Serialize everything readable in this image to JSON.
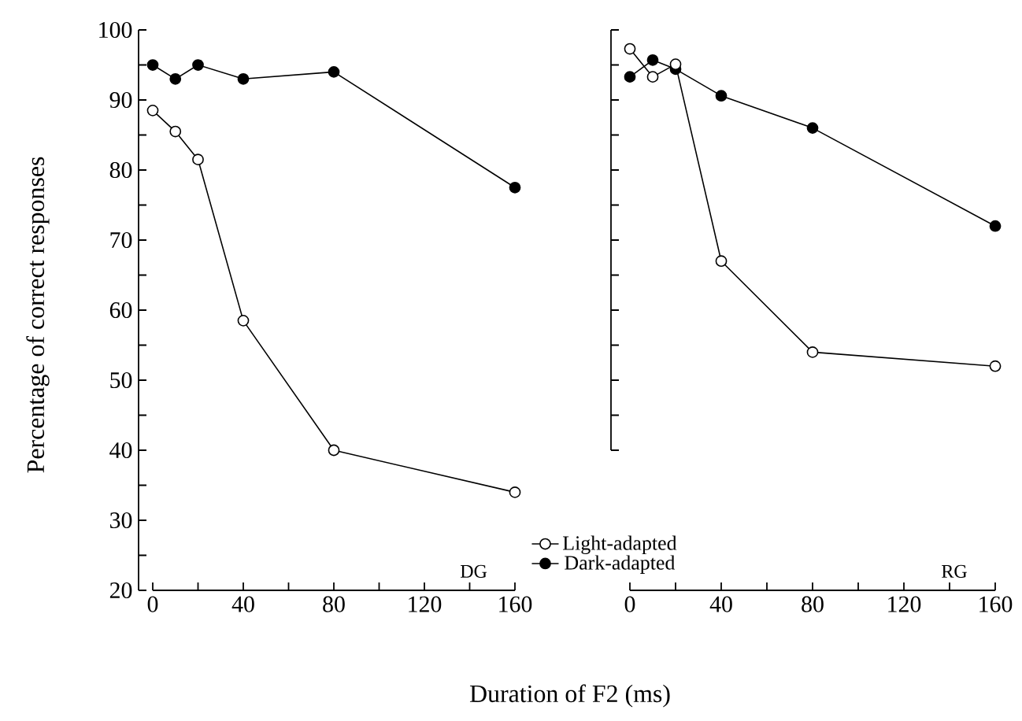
{
  "chart_data": [
    {
      "type": "line",
      "xlabel": "Duration of F2 (ms)",
      "ylabel": "Percentage of correct responses",
      "annotations": [
        "DG"
      ],
      "x": [
        0,
        10,
        20,
        40,
        80,
        160
      ],
      "series": [
        {
          "name": "Light-adapted",
          "color": "#ffffff",
          "values": [
            88.5,
            85.5,
            81.5,
            58.5,
            40,
            34
          ]
        },
        {
          "name": "Dark-adapted",
          "color": "#000000",
          "values": [
            95,
            93,
            95,
            93,
            94,
            77.5
          ]
        }
      ],
      "xlim": [
        0,
        160
      ],
      "ylim": [
        20,
        100
      ],
      "xticks": [
        0,
        {
          "value": 20,
          "label": null
        },
        40,
        {
          "value": 60,
          "label": null
        },
        80,
        {
          "value": 100,
          "label": null
        },
        120,
        {
          "value": 140,
          "label": null
        },
        160
      ],
      "yticks": [
        20,
        {
          "value": 25,
          "label": null
        },
        30,
        {
          "value": 35,
          "label": null
        },
        40,
        {
          "value": 45,
          "label": null
        },
        50,
        {
          "value": 55,
          "label": null
        },
        60,
        {
          "value": 65,
          "label": null
        },
        70,
        {
          "value": 75,
          "label": null
        },
        80,
        {
          "value": 85,
          "label": null
        },
        90,
        {
          "value": 95,
          "label": null
        },
        100
      ],
      "marker": "circle",
      "legend": "bottom right",
      "grid": false
    },
    {
      "type": "line",
      "annotations": [
        "RG"
      ],
      "x": [
        0,
        10,
        20,
        40,
        80,
        160
      ],
      "series": [
        {
          "color": "#ffffff",
          "values": [
            97.3,
            93.3,
            95.1,
            67,
            54,
            52
          ]
        },
        {
          "color": "#000000",
          "values": [
            93.3,
            95.7,
            94.4,
            90.6,
            86,
            72
          ]
        }
      ],
      "xlim": [
        0,
        160
      ],
      "ylim": [
        20,
        100
      ],
      "xticks": [
        0,
        {
          "value": 20,
          "label": null
        },
        40,
        {
          "value": 60,
          "label": null
        },
        80,
        {
          "value": 100,
          "label": null
        },
        120,
        {
          "value": 140,
          "label": null
        },
        160
      ],
      "yticks": [
        {
          "value": 40,
          "label": null
        },
        {
          "value": 45,
          "label": null
        },
        {
          "value": 50,
          "label": null
        },
        {
          "value": 55,
          "label": null
        },
        {
          "value": 60,
          "label": null
        },
        {
          "value": 65,
          "label": null
        },
        {
          "value": 70,
          "label": null
        },
        {
          "value": 75,
          "label": null
        },
        {
          "value": 80,
          "label": null
        },
        {
          "value": 85,
          "label": null
        },
        {
          "value": 90,
          "label": null
        },
        {
          "value": 95,
          "label": null
        },
        {
          "value": 100,
          "label": null
        }
      ],
      "marker": "circle",
      "tick_labels": "x",
      "grid": false
    }
  ]
}
